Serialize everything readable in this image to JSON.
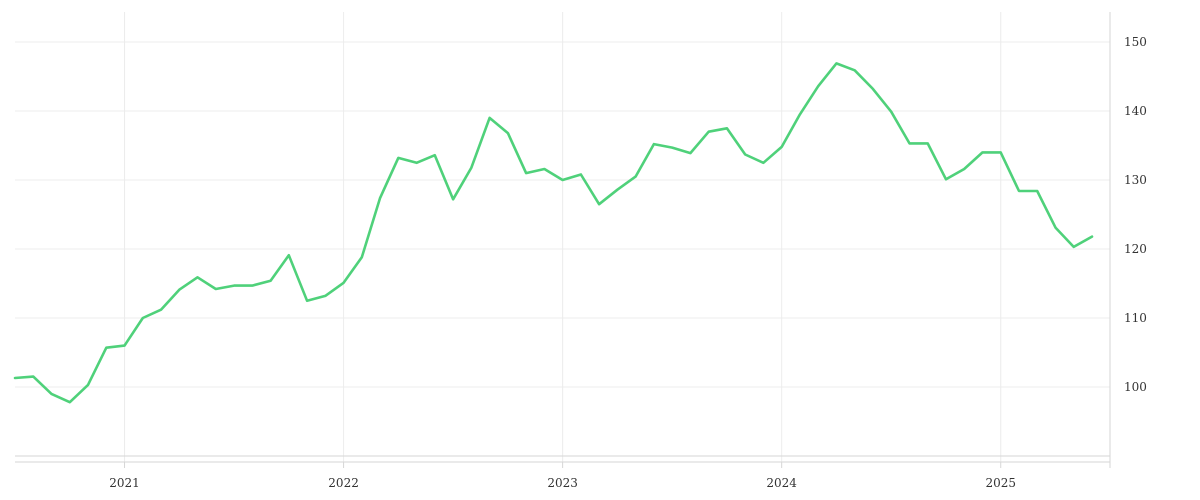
{
  "chart_data": {
    "type": "line",
    "title": "",
    "xlabel": "",
    "ylabel": "",
    "x_tick_labels": [
      "2021",
      "2022",
      "2023",
      "2024",
      "2025"
    ],
    "y_tick_labels": [
      "100",
      "110",
      "120",
      "130",
      "140",
      "150"
    ],
    "y_ticks": [
      100,
      110,
      120,
      130,
      140,
      150
    ],
    "ylim": [
      89.5,
      153
    ],
    "xlim": [
      "2020-07",
      "2025-07"
    ],
    "y_axis_position": "right",
    "grid": true,
    "legend": "none",
    "series": [
      {
        "color": "#4fd17a",
        "points": [
          [
            "2020-07",
            101.3
          ],
          [
            "2020-08",
            101.5
          ],
          [
            "2020-09",
            99.0
          ],
          [
            "2020-10",
            97.8
          ],
          [
            "2020-11",
            100.3
          ],
          [
            "2020-12",
            105.7
          ],
          [
            "2021-01",
            106.0
          ],
          [
            "2021-02",
            110.0
          ],
          [
            "2021-03",
            111.2
          ],
          [
            "2021-04",
            114.1
          ],
          [
            "2021-05",
            115.9
          ],
          [
            "2021-06",
            114.2
          ],
          [
            "2021-07",
            114.7
          ],
          [
            "2021-08",
            114.7
          ],
          [
            "2021-09",
            115.4
          ],
          [
            "2021-10",
            119.1
          ],
          [
            "2021-11",
            112.5
          ],
          [
            "2021-12",
            113.2
          ],
          [
            "2022-01",
            115.1
          ],
          [
            "2022-02",
            118.8
          ],
          [
            "2022-03",
            127.4
          ],
          [
            "2022-04",
            133.2
          ],
          [
            "2022-05",
            132.5
          ],
          [
            "2022-06",
            133.6
          ],
          [
            "2022-07",
            127.2
          ],
          [
            "2022-08",
            131.8
          ],
          [
            "2022-09",
            139.0
          ],
          [
            "2022-10",
            136.8
          ],
          [
            "2022-11",
            131.0
          ],
          [
            "2022-12",
            131.6
          ],
          [
            "2023-01",
            130.0
          ],
          [
            "2023-02",
            130.8
          ],
          [
            "2023-03",
            126.5
          ],
          [
            "2023-04",
            128.6
          ],
          [
            "2023-05",
            130.5
          ],
          [
            "2023-06",
            135.2
          ],
          [
            "2023-07",
            134.7
          ],
          [
            "2023-08",
            133.9
          ],
          [
            "2023-09",
            137.0
          ],
          [
            "2023-10",
            137.5
          ],
          [
            "2023-11",
            133.7
          ],
          [
            "2023-12",
            132.5
          ],
          [
            "2024-01",
            134.8
          ],
          [
            "2024-02",
            139.5
          ],
          [
            "2024-03",
            143.6
          ],
          [
            "2024-04",
            146.9
          ],
          [
            "2024-05",
            145.9
          ],
          [
            "2024-06",
            143.2
          ],
          [
            "2024-07",
            139.9
          ],
          [
            "2024-08",
            135.3
          ],
          [
            "2024-09",
            135.3
          ],
          [
            "2024-10",
            130.1
          ],
          [
            "2024-11",
            131.6
          ],
          [
            "2024-12",
            134.0
          ],
          [
            "2025-01",
            134.0
          ],
          [
            "2025-02",
            128.4
          ],
          [
            "2025-03",
            128.4
          ],
          [
            "2025-04",
            123.1
          ],
          [
            "2025-05",
            120.3
          ],
          [
            "2025-06",
            121.8
          ]
        ]
      }
    ]
  }
}
